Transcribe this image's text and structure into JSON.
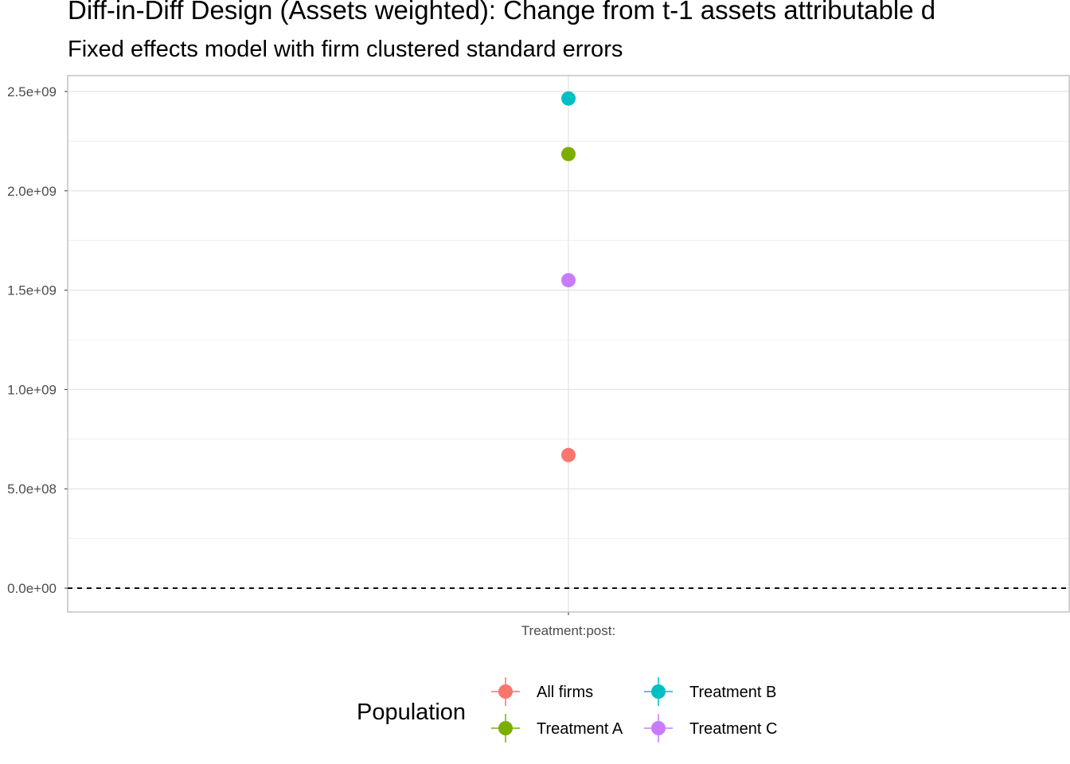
{
  "chart_data": {
    "type": "scatter",
    "title": "Diff-in-Diff Design (Assets weighted): Change from t-1 assets attributable d",
    "subtitle": "Fixed effects model with firm clustered standard errors",
    "xlabel": "",
    "ylabel": "",
    "categories": [
      "Treatment:post:"
    ],
    "ylim": [
      -120000000,
      2580000000
    ],
    "y_ticks": [
      0,
      500000000,
      1000000000,
      1500000000,
      2000000000,
      2500000000
    ],
    "y_tick_labels": [
      "0.0e+00",
      "5.0e+08",
      "1.0e+09",
      "1.5e+09",
      "2.0e+09",
      "2.5e+09"
    ],
    "reference_line": {
      "y": 0,
      "style": "dashed"
    },
    "grid": true,
    "legend": {
      "title": "Population",
      "placement": "bottom"
    },
    "series": [
      {
        "name": "All firms",
        "color": "#F8766D",
        "values": [
          670000000
        ]
      },
      {
        "name": "Treatment A",
        "color": "#7CAE00",
        "values": [
          2185000000
        ]
      },
      {
        "name": "Treatment B",
        "color": "#00BFC4",
        "values": [
          2465000000
        ]
      },
      {
        "name": "Treatment C",
        "color": "#C77CFF",
        "values": [
          1550000000
        ]
      }
    ]
  }
}
